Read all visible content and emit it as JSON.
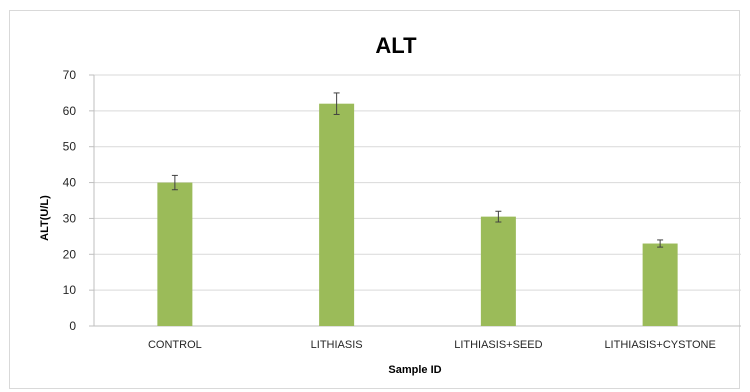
{
  "chart_data": {
    "type": "bar",
    "title": "ALT",
    "xlabel": "Sample ID",
    "ylabel": "ALT(U/L)",
    "categories": [
      "CONTROL",
      "LITHIASIS",
      "LITHIASIS+SEED",
      "LITHIASIS+CYSTONE"
    ],
    "values": [
      40,
      62,
      30.5,
      23
    ],
    "errors": [
      2,
      3,
      1.5,
      1
    ],
    "ylim": [
      0,
      70
    ],
    "yticks": [
      0,
      10,
      20,
      30,
      40,
      50,
      60,
      70
    ],
    "grid": true,
    "legend": "none",
    "bar_color": "#9BBB59",
    "grid_color": "#d9d9d9",
    "axis_color": "#bfbfbf",
    "error_color": "#404040"
  }
}
